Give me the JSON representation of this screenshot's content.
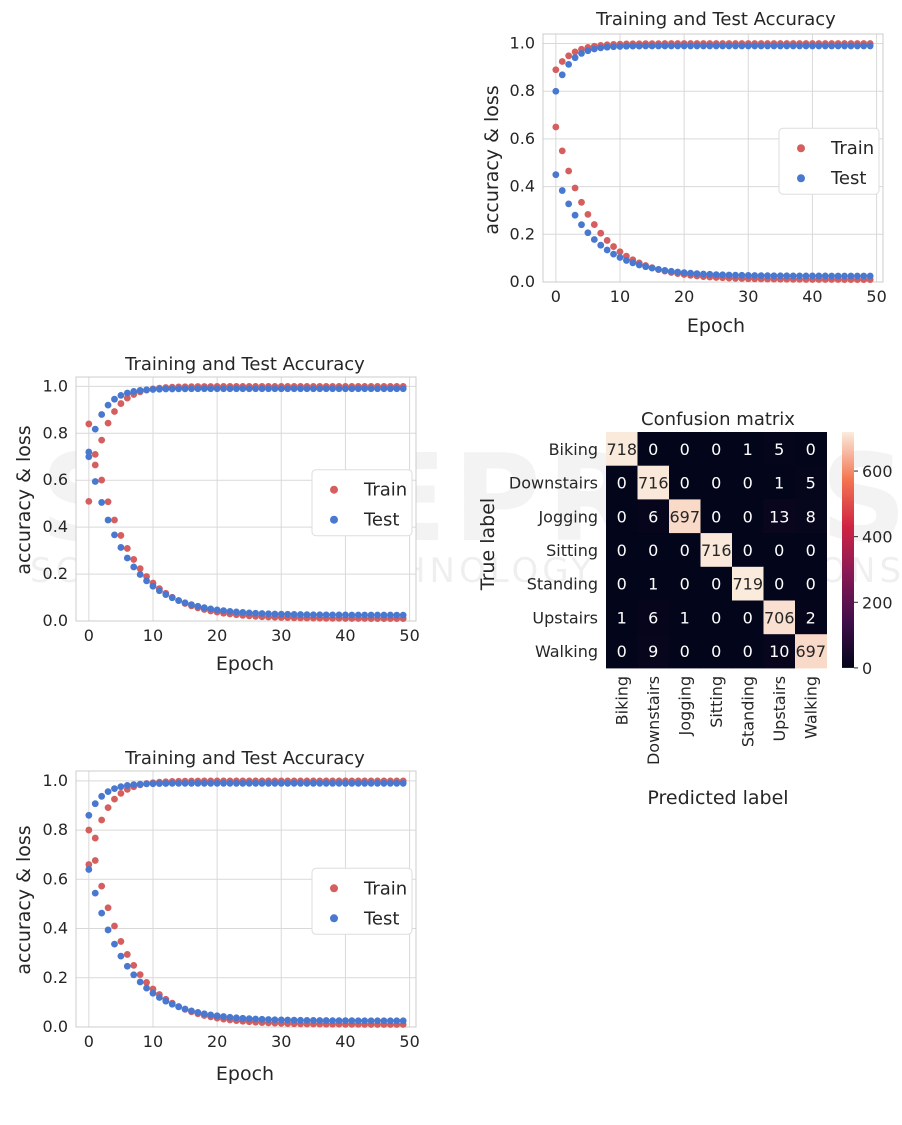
{
  "watermark": {
    "main": "SCITEPRESS",
    "sub": "SCIENCE AND TECHNOLOGY PUBLICATIONS"
  },
  "colors": {
    "train": "#d55e5e",
    "test": "#4878cf"
  },
  "chart_data": [
    {
      "id": "acc-top-right",
      "type": "scatter",
      "title": "Training and Test Accuracy",
      "xlabel": "Epoch",
      "ylabel": "accuracy & loss",
      "xlim": [
        -2,
        51
      ],
      "ylim": [
        0,
        1.04
      ],
      "xticks": [
        0,
        10,
        20,
        30,
        40,
        50
      ],
      "yticks": [
        "0.0",
        "0.2",
        "0.4",
        "0.6",
        "0.8",
        "1.0"
      ],
      "legend": {
        "position": "right",
        "entries": [
          "Train",
          "Test"
        ]
      },
      "series": [
        {
          "name": "Train",
          "color": "#d55e5e",
          "acc_start": 0.89,
          "acc_end": 1.0,
          "loss_start": 0.65,
          "loss_end": 0.01
        },
        {
          "name": "Test",
          "color": "#4878cf",
          "acc_start": 0.8,
          "acc_end": 0.99,
          "loss_start": 0.45,
          "loss_end": 0.025
        }
      ]
    },
    {
      "id": "acc-middle-left",
      "type": "scatter",
      "title": "Training and Test Accuracy",
      "xlabel": "Epoch",
      "ylabel": "accuracy & loss",
      "xlim": [
        -2,
        51
      ],
      "ylim": [
        0,
        1.04
      ],
      "xticks": [
        0,
        10,
        20,
        30,
        40,
        50
      ],
      "yticks": [
        "0.0",
        "0.2",
        "0.4",
        "0.6",
        "0.8",
        "1.0"
      ],
      "legend": {
        "position": "right",
        "entries": [
          "Train",
          "Test"
        ]
      },
      "series": [
        {
          "name": "Train",
          "color": "#d55e5e",
          "acc_start": 0.51,
          "acc_end": 1.0,
          "loss_start": 0.84,
          "loss_end": 0.01
        },
        {
          "name": "Test",
          "color": "#4878cf",
          "acc_start": 0.72,
          "acc_end": 0.99,
          "loss_start": 0.7,
          "loss_end": 0.025
        }
      ]
    },
    {
      "id": "acc-bottom-left",
      "type": "scatter",
      "title": "Training and Test Accuracy",
      "xlabel": "Epoch",
      "ylabel": "accuracy & loss",
      "xlim": [
        -2,
        51
      ],
      "ylim": [
        0,
        1.04
      ],
      "xticks": [
        0,
        10,
        20,
        30,
        40,
        50
      ],
      "yticks": [
        "0.0",
        "0.2",
        "0.4",
        "0.6",
        "0.8",
        "1.0"
      ],
      "legend": {
        "position": "right",
        "entries": [
          "Train",
          "Test"
        ]
      },
      "series": [
        {
          "name": "Train",
          "color": "#d55e5e",
          "acc_start": 0.66,
          "acc_end": 1.0,
          "loss_start": 0.8,
          "loss_end": 0.01
        },
        {
          "name": "Test",
          "color": "#4878cf",
          "acc_start": 0.86,
          "acc_end": 0.99,
          "loss_start": 0.64,
          "loss_end": 0.025
        }
      ]
    },
    {
      "id": "confusion-matrix",
      "type": "heatmap",
      "title": "Confusion matrix",
      "xlabel": "Predicted label",
      "ylabel": "True label",
      "labels": [
        "Biking",
        "Downstairs",
        "Jogging",
        "Sitting",
        "Standing",
        "Upstairs",
        "Walking"
      ],
      "matrix": [
        [
          718,
          0,
          0,
          0,
          1,
          5,
          0
        ],
        [
          0,
          716,
          0,
          0,
          0,
          1,
          5
        ],
        [
          0,
          6,
          697,
          0,
          0,
          13,
          8
        ],
        [
          0,
          0,
          0,
          716,
          0,
          0,
          0
        ],
        [
          0,
          1,
          0,
          0,
          719,
          0,
          0
        ],
        [
          1,
          6,
          1,
          0,
          0,
          706,
          2
        ],
        [
          0,
          9,
          0,
          0,
          0,
          10,
          697
        ]
      ],
      "colorbar": {
        "ticks": [
          "0",
          "200",
          "400",
          "600"
        ],
        "max": 719
      }
    }
  ]
}
